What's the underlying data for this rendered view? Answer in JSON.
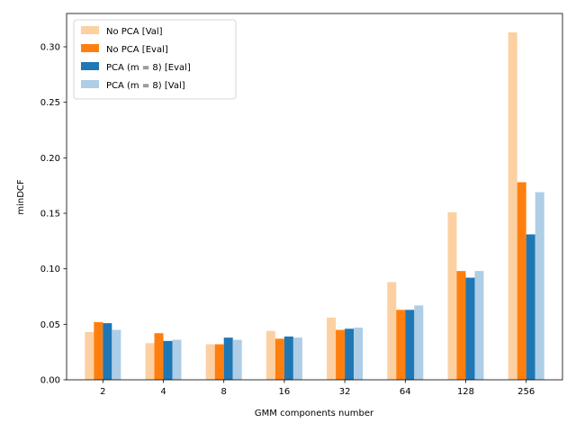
{
  "chart_data": {
    "type": "bar",
    "xlabel": "GMM components number",
    "ylabel": "minDCF",
    "categories": [
      "2",
      "4",
      "8",
      "16",
      "32",
      "64",
      "128",
      "256"
    ],
    "ylim": [
      0,
      0.33
    ],
    "yticks": [
      "0.00",
      "0.05",
      "0.10",
      "0.15",
      "0.20",
      "0.25",
      "0.30"
    ],
    "legend_position": "top-left",
    "grid": false,
    "series": [
      {
        "name": "No PCA [Val]",
        "color": "#fdd0a2",
        "values": [
          0.043,
          0.033,
          0.032,
          0.044,
          0.056,
          0.088,
          0.151,
          0.313
        ]
      },
      {
        "name": "No PCA [Eval]",
        "color": "#ff7f0e",
        "values": [
          0.052,
          0.042,
          0.032,
          0.037,
          0.045,
          0.063,
          0.098,
          0.178
        ]
      },
      {
        "name": "PCA (m = 8) [Eval]",
        "color": "#1f77b4",
        "values": [
          0.051,
          0.035,
          0.038,
          0.039,
          0.046,
          0.063,
          0.092,
          0.131
        ]
      },
      {
        "name": "PCA (m = 8) [Val]",
        "color": "#aecde6",
        "values": [
          0.045,
          0.036,
          0.036,
          0.038,
          0.047,
          0.067,
          0.098,
          0.169
        ]
      }
    ]
  }
}
